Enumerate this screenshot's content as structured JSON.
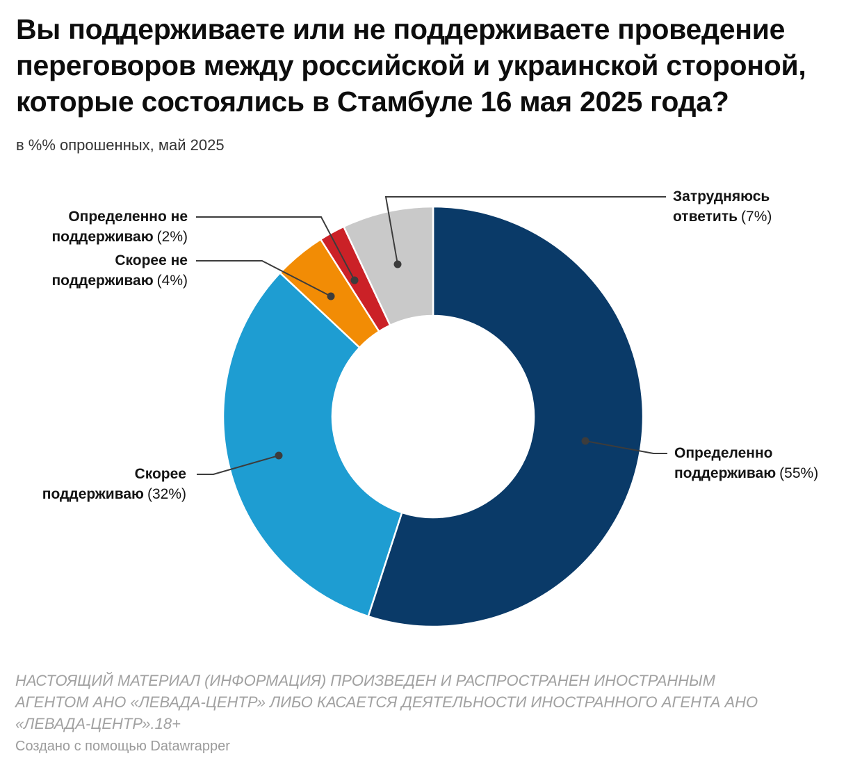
{
  "header": {
    "title_lines": [
      "Вы поддерживаете или не поддерживаете проведение",
      "переговоров между российской и украинской стороной,",
      "которые состоялись в Стамбуле 16 мая 2025 года?"
    ],
    "subtitle": "в %% опрошенных, май 2025"
  },
  "chart_data": {
    "type": "pie",
    "variant": "donut",
    "title": "Вы поддерживаете или не поддерживаете проведение переговоров между российской и украинской стороной, которые состоялись в Стамбуле 16 мая 2025 года?",
    "subtitle": "в %% опрошенных, май 2025",
    "unit": "% опрошенных",
    "categories": [
      "Определенно поддерживаю",
      "Скорее поддерживаю",
      "Скорее не поддерживаю",
      "Определенно не поддерживаю",
      "Затрудняюсь ответить"
    ],
    "values": [
      55,
      32,
      4,
      2,
      7
    ],
    "colors": [
      "#0a3a68",
      "#1e9dd2",
      "#f28c05",
      "#cb2127",
      "#c9c9c9"
    ],
    "slice_ids": [
      "definitely-support",
      "rather-support",
      "rather-not-support",
      "definitely-not-support",
      "difficult-to-answer"
    ],
    "start_angle_deg": 0,
    "direction": "clockwise",
    "inner_radius_ratio": 0.48,
    "labels_style": "callouts-with-leader-lines",
    "legend_position": "none"
  },
  "callouts": [
    {
      "line1": "Определенно",
      "line2": "поддерживаю",
      "pct": "(55%)"
    },
    {
      "line1": "Скорее",
      "line2": "поддерживаю",
      "pct": "(32%)"
    },
    {
      "line1": "Скорее не",
      "line2": "поддерживаю",
      "pct": "(4%)"
    },
    {
      "line1": "Определенно не",
      "line2": "поддерживаю",
      "pct": "(2%)"
    },
    {
      "line1": "Затрудняюсь",
      "line2": "ответить",
      "pct": "(7%)"
    }
  ],
  "footer": {
    "disclaimer_lines": [
      "НАСТОЯЩИЙ МАТЕРИАЛ (ИНФОРМАЦИЯ) ПРОИЗВЕДЕН И РАСПРОСТРАНЕН ИНОСТРАННЫМ",
      "АГЕНТОМ АНО «ЛЕВАДА-ЦЕНТР» ЛИБО КАСАЕТСЯ ДЕЯТЕЛЬНОСТИ ИНОСТРАННОГО АГЕНТА АНО",
      "«ЛЕВАДА-ЦЕНТР».18+"
    ],
    "attribution": "Создано с помощью Datawrapper"
  },
  "style": {
    "leader_line_color": "#3c3c3c",
    "background": "#ffffff",
    "title_color": "#0d0d0d",
    "muted_text_color": "#a1a1a1"
  }
}
